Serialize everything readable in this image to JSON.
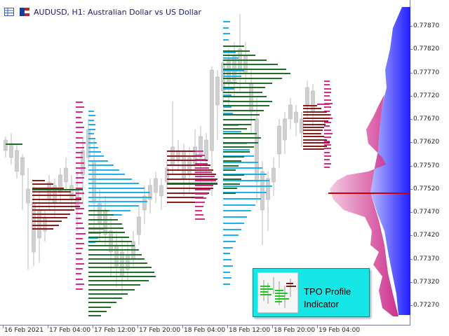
{
  "window": {
    "symbol_title": "AUDUSD, H1:  Australian Dollar vs US Dollar"
  },
  "price_axis": {
    "labels": [
      "0.77870",
      "0.77820",
      "0.77770",
      "0.77720",
      "0.77670",
      "0.77620",
      "0.77570",
      "0.77520",
      "0.77470",
      "0.77420",
      "0.77370",
      "0.77320",
      "0.77270"
    ]
  },
  "time_axis": {
    "labels": [
      "16 Feb 2021",
      "17 Feb 04:00",
      "17 Feb 12:00",
      "17 Feb 20:00",
      "18 Feb 04:00",
      "18 Feb 12:00",
      "18 Feb 20:00",
      "19 Feb 04:00"
    ]
  },
  "promo": {
    "line1": "TPO Profile",
    "line2": "Indicator"
  },
  "colors": {
    "candle": "#cfcfcf",
    "dark_green": "#1f6e2a",
    "dark_red": "#8b1a1a",
    "sky_blue": "#1ab2f0",
    "magenta": "#e0288c",
    "poc_line": "#cc0000",
    "volume_blue": "#1e1eff",
    "volume_pink": "#d0208a",
    "promo_bg": "#17e6e6"
  },
  "icons": {
    "chart_icon": "chart-icon",
    "flag_icon": "flag-icon"
  }
}
